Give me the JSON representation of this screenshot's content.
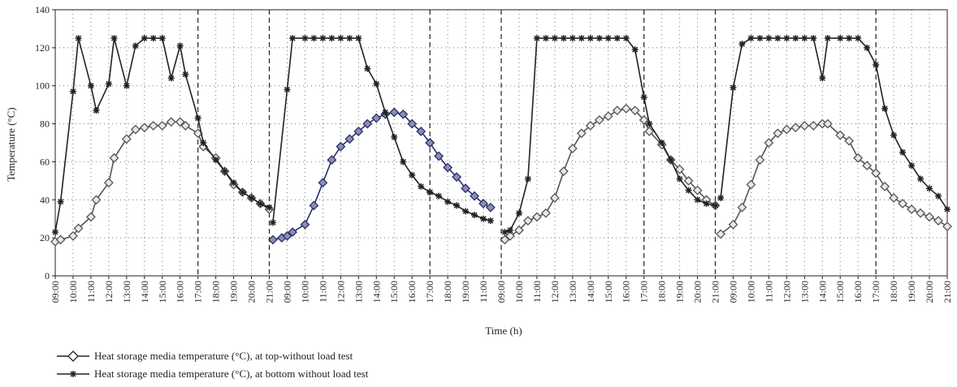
{
  "chart_data": {
    "type": "line",
    "xlabel": "Time (h)",
    "ylabel": "Temperature (°C)",
    "ylim": [
      0,
      140
    ],
    "yticks": [
      0,
      20,
      40,
      60,
      80,
      100,
      120,
      140
    ],
    "grid": "dotted",
    "legend_position": "bottom-left",
    "xticks": [
      "09:00",
      "10:00",
      "11:00",
      "12:00",
      "13:00",
      "14:00",
      "15:00",
      "16:00",
      "17:00",
      "18:00",
      "19:00",
      "20:00",
      "21:00",
      "09:00",
      "10:00",
      "11:00",
      "12:00",
      "13:00",
      "14:00",
      "15:00",
      "16:00",
      "17:00",
      "18:00",
      "19:00",
      "11:00",
      "09:00",
      "10:00",
      "11:00",
      "12:00",
      "13:00",
      "14:00",
      "15:00",
      "16:00",
      "17:00",
      "18:00",
      "19:00",
      "20:00",
      "21:00",
      "09:00",
      "10:00",
      "11:00",
      "12:00",
      "13:00",
      "14:00",
      "15:00",
      "16:00",
      "17:00",
      "18:00",
      "19:00",
      "20:00",
      "21:00"
    ],
    "dividers_at_tick": [
      8,
      12,
      21,
      25,
      33,
      37,
      46
    ],
    "series": [
      {
        "name": "Heat storage media temperature (°C), at top-without load test",
        "marker": "diamond",
        "segments": [
          {
            "x": [
              0,
              0.3,
              1,
              1.3,
              2,
              2.3,
              3,
              3.3,
              4,
              4.5,
              5,
              5.5,
              6,
              6.5,
              7,
              7.3,
              8,
              8.3,
              9,
              9.5,
              10,
              10.5,
              11,
              11.5,
              12
            ],
            "y": [
              18,
              19,
              21,
              25,
              31,
              40,
              49,
              62,
              72,
              77,
              78,
              79,
              79,
              81,
              81,
              79,
              75,
              68,
              62,
              55,
              48,
              44,
              41,
              38,
              35
            ],
            "color": "#555555"
          },
          {
            "x": [
              12.2,
              12.7,
              13,
              13.3,
              14,
              14.5,
              15,
              15.5,
              16,
              16.5,
              17,
              17.5,
              18,
              18.5,
              19,
              19.5,
              20,
              20.5,
              21
            ],
            "y": [
              19,
              20,
              21,
              23,
              27,
              37,
              49,
              61,
              68,
              72,
              76,
              80,
              83,
              85,
              86,
              85,
              80,
              76,
              70
            ],
            "color": "#2a2f66"
          },
          {
            "x": [
              21,
              21.5,
              22,
              22.5,
              23,
              23.5,
              24,
              24.4
            ],
            "y": [
              70,
              63,
              57,
              52,
              46,
              42,
              38,
              36
            ],
            "color": "#2a2f66"
          },
          {
            "x": [
              25.2,
              25.5,
              26,
              26.5,
              27,
              27.5,
              28,
              28.5,
              29,
              29.5,
              30,
              30.5,
              31,
              31.5,
              32,
              32.5,
              33,
              33.3,
              34,
              34.5,
              35,
              35.5,
              36,
              36.5,
              37
            ],
            "y": [
              19,
              21,
              24,
              29,
              31,
              33,
              41,
              55,
              67,
              75,
              79,
              82,
              84,
              87,
              88,
              87,
              82,
              76,
              69,
              61,
              56,
              50,
              45,
              40,
              37
            ],
            "color": "#555555"
          },
          {
            "x": [
              37.3,
              38,
              38.5,
              39,
              39.5,
              40,
              40.5,
              41,
              41.5,
              42,
              42.5,
              43,
              43.3,
              44,
              44.5,
              45,
              45.5,
              46,
              46.5,
              47,
              47.5,
              48,
              48.5,
              49,
              49.5,
              50
            ],
            "y": [
              22,
              27,
              36,
              48,
              61,
              70,
              75,
              77,
              78,
              79,
              79,
              80,
              80,
              74,
              71,
              62,
              58,
              54,
              47,
              41,
              38,
              35,
              33,
              31,
              29,
              26
            ],
            "color": "#555555"
          }
        ]
      },
      {
        "name": "Heat storage media temperature (°C), at bottom without load test",
        "marker": "star",
        "segments": [
          {
            "x": [
              0,
              0.3,
              1,
              1.3,
              2,
              2.3,
              3,
              3.3,
              4,
              4.5,
              5,
              5.5,
              6,
              6.5,
              7,
              7.3,
              8,
              8.3,
              9,
              9.5,
              10,
              10.5,
              11,
              11.5,
              12
            ],
            "y": [
              23,
              39,
              97,
              125,
              100,
              87,
              101,
              125,
              100,
              121,
              125,
              125,
              125,
              104,
              121,
              106,
              83,
              70,
              61,
              55,
              49,
              44,
              41,
              38,
              36
            ],
            "color": "#222222"
          },
          {
            "x": [
              12.2,
              13,
              13.3,
              14,
              14.5,
              15,
              15.5,
              16,
              16.5,
              17,
              17.5,
              18,
              18.5,
              19,
              19.5,
              20,
              20.5,
              21
            ],
            "y": [
              28,
              98,
              125,
              125,
              125,
              125,
              125,
              125,
              125,
              125,
              109,
              101,
              86,
              73,
              60,
              53,
              47,
              44
            ],
            "color": "#222222"
          },
          {
            "x": [
              21,
              21.5,
              22,
              22.5,
              23,
              23.5,
              24,
              24.4
            ],
            "y": [
              44,
              42,
              39,
              37,
              34,
              32,
              30,
              29
            ],
            "color": "#222222"
          },
          {
            "x": [
              25.2,
              25.5,
              26,
              26.5,
              27,
              27.5,
              28,
              28.5,
              29,
              29.5,
              30,
              30.5,
              31,
              31.5,
              32,
              32.5,
              33,
              33.3,
              34,
              34.5,
              35,
              35.5,
              36,
              36.5,
              37
            ],
            "y": [
              23,
              24,
              33,
              51,
              125,
              125,
              125,
              125,
              125,
              125,
              125,
              125,
              125,
              125,
              125,
              119,
              94,
              80,
              70,
              61,
              51,
              45,
              40,
              38,
              37
            ],
            "color": "#222222"
          },
          {
            "x": [
              37.3,
              38,
              38.5,
              39,
              39.5,
              40,
              40.5,
              41,
              41.5,
              42,
              42.5,
              43,
              43.3,
              44,
              44.5,
              45,
              45.5,
              46,
              46.5,
              47,
              47.5,
              48,
              48.5,
              49,
              49.5,
              50
            ],
            "y": [
              41,
              99,
              122,
              125,
              125,
              125,
              125,
              125,
              125,
              125,
              125,
              104,
              125,
              125,
              125,
              125,
              120,
              111,
              88,
              74,
              65,
              58,
              51,
              46,
              42,
              35
            ],
            "color": "#222222"
          }
        ]
      }
    ]
  },
  "legend": {
    "items": [
      {
        "label": "Heat storage media temperature (°C), at top-without load test"
      },
      {
        "label": "Heat storage media temperature (°C), at bottom without load test"
      }
    ]
  }
}
